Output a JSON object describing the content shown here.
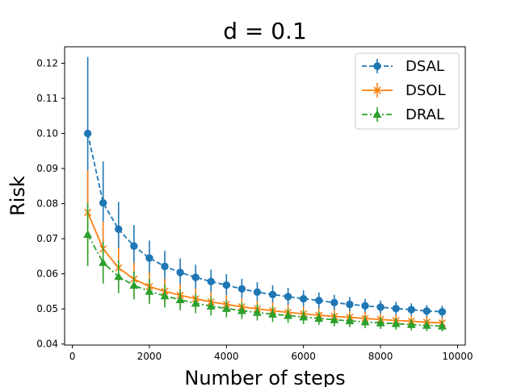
{
  "chart_data": {
    "type": "line",
    "title": "d = 0.1",
    "xlabel": "Number of steps",
    "ylabel": "Risk",
    "xlim": [
      -200,
      10200
    ],
    "ylim": [
      0.0397,
      0.1247
    ],
    "xticks": [
      0,
      2000,
      4000,
      6000,
      8000,
      10000
    ],
    "yticks": [
      0.04,
      0.05,
      0.06,
      0.07,
      0.08,
      0.09,
      0.1,
      0.11,
      0.12
    ],
    "xtick_labels": [
      "0",
      "2000",
      "4000",
      "6000",
      "8000",
      "10000"
    ],
    "ytick_labels": [
      "0.04",
      "0.05",
      "0.06",
      "0.07",
      "0.08",
      "0.09",
      "0.10",
      "0.11",
      "0.12"
    ],
    "legend_position": "top-right",
    "x": [
      400,
      800,
      1200,
      1600,
      2000,
      2400,
      2800,
      3200,
      3600,
      4000,
      4400,
      4800,
      5200,
      5600,
      6000,
      6400,
      6800,
      7200,
      7600,
      8000,
      8400,
      8800,
      9200,
      9600
    ],
    "series": [
      {
        "name": "DSAL",
        "color": "#1f77b4",
        "linestyle": "dashed",
        "marker": "circle",
        "values": [
          0.1,
          0.0802,
          0.0727,
          0.0679,
          0.0645,
          0.0621,
          0.0604,
          0.059,
          0.0578,
          0.0568,
          0.0557,
          0.0548,
          0.0541,
          0.0535,
          0.0529,
          0.0524,
          0.0518,
          0.0513,
          0.0509,
          0.0505,
          0.0501,
          0.0498,
          0.0494,
          0.0492
        ],
        "errors": [
          0.0218,
          0.0118,
          0.0078,
          0.006,
          0.005,
          0.0045,
          0.004,
          0.0036,
          0.0034,
          0.0031,
          0.0029,
          0.0028,
          0.0026,
          0.0025,
          0.0024,
          0.0023,
          0.0022,
          0.0021,
          0.002,
          0.0019,
          0.0019,
          0.0018,
          0.0017,
          0.0017
        ]
      },
      {
        "name": "DSOL",
        "color": "#ff7f0e",
        "linestyle": "solid",
        "marker": "x",
        "values": [
          0.0775,
          0.0671,
          0.0617,
          0.0585,
          0.0564,
          0.055,
          0.0539,
          0.0529,
          0.052,
          0.0513,
          0.0506,
          0.05,
          0.0495,
          0.049,
          0.0486,
          0.0482,
          0.0479,
          0.0476,
          0.0473,
          0.047,
          0.0467,
          0.0465,
          0.0462,
          0.046
        ],
        "errors": [
          0.012,
          0.0078,
          0.0057,
          0.0047,
          0.004,
          0.0036,
          0.0033,
          0.003,
          0.0028,
          0.0026,
          0.0025,
          0.0024,
          0.0023,
          0.0022,
          0.0021,
          0.002,
          0.0019,
          0.0018,
          0.0018,
          0.0017,
          0.0017,
          0.0016,
          0.0016,
          0.0015
        ]
      },
      {
        "name": "DRAL",
        "color": "#2ca02c",
        "linestyle": "dashdot",
        "marker": "triangle",
        "values": [
          0.0712,
          0.0632,
          0.0592,
          0.0567,
          0.055,
          0.0537,
          0.0526,
          0.0516,
          0.0508,
          0.0501,
          0.0495,
          0.049,
          0.0485,
          0.0481,
          0.0477,
          0.0473,
          0.0469,
          0.0466,
          0.0463,
          0.046,
          0.0458,
          0.0455,
          0.0453,
          0.0451
        ],
        "errors": [
          0.009,
          0.006,
          0.0047,
          0.004,
          0.0036,
          0.0033,
          0.003,
          0.0028,
          0.0027,
          0.0025,
          0.0024,
          0.0023,
          0.0022,
          0.0021,
          0.002,
          0.0019,
          0.0019,
          0.0018,
          0.0018,
          0.0017,
          0.0017,
          0.0016,
          0.0016,
          0.0015
        ]
      }
    ]
  }
}
